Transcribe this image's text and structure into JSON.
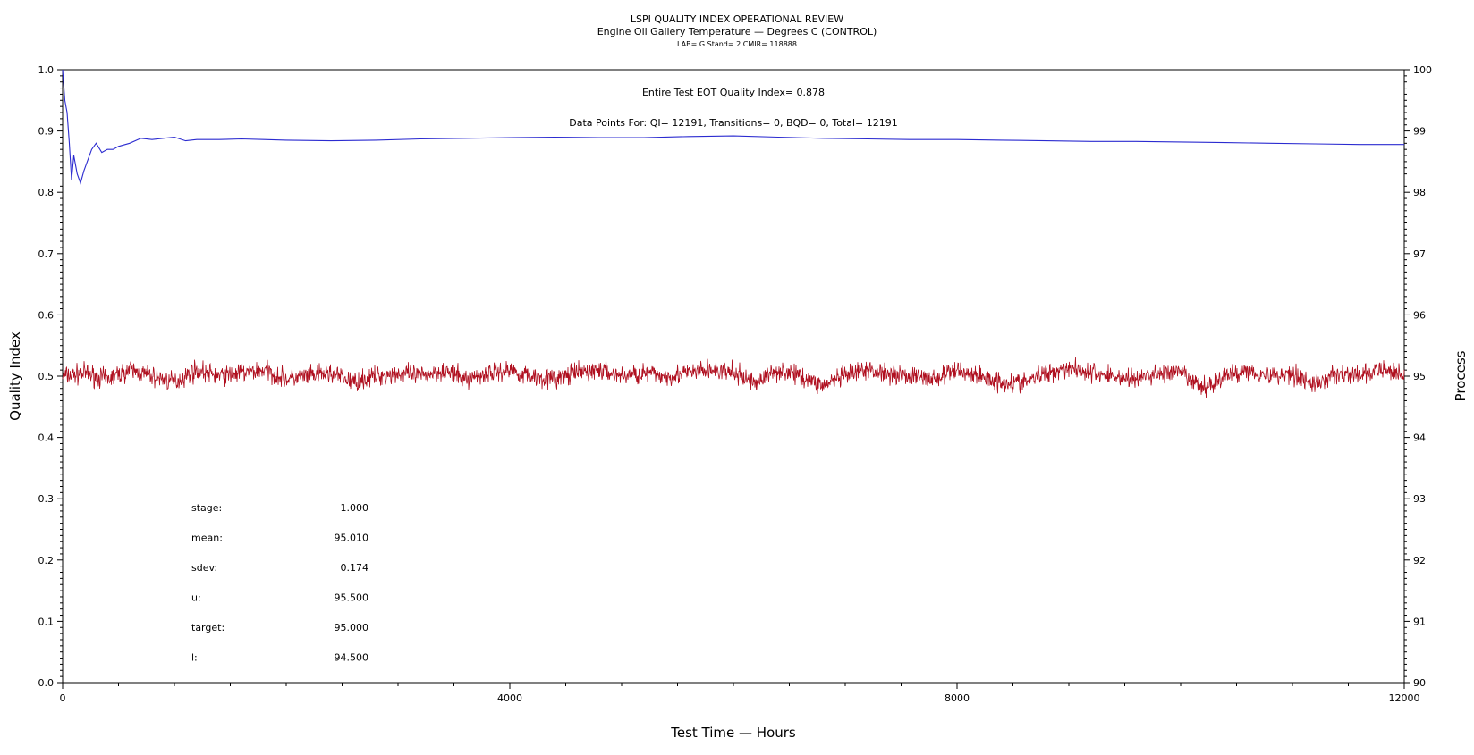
{
  "chart_data": {
    "type": "line",
    "title": "LSPI QUALITY INDEX OPERATIONAL REVIEW",
    "subtitle": "Engine Oil Gallery Temperature — Degrees C (CONTROL)",
    "subtitle2": "LAB= G Stand= 2 CMIR= 118888",
    "xlabel": "Test Time — Hours",
    "ylabel": "Quality Index",
    "y2label": "Process",
    "xlim": [
      0,
      12000
    ],
    "ylim": [
      0,
      1.0
    ],
    "y2lim": [
      90,
      100
    ],
    "x_ticks": [
      0,
      4000,
      8000,
      12000
    ],
    "y_ticks": [
      "0.0",
      "0.1",
      "0.2",
      "0.3",
      "0.4",
      "0.5",
      "0.6",
      "0.7",
      "0.8",
      "0.9",
      "1.0"
    ],
    "y2_ticks": [
      "90",
      "91",
      "92",
      "93",
      "94",
      "95",
      "96",
      "97",
      "98",
      "99",
      "100"
    ],
    "annotations": {
      "quality_index": "Entire Test EOT Quality Index=   0.878",
      "data_points": "Data Points For: QI= 12191, Transitions=     0, BQD=     0, Total= 12191"
    },
    "stats": [
      {
        "label": "stage:",
        "value": "1.000"
      },
      {
        "label": "mean:",
        "value": "95.010"
      },
      {
        "label": "sdev:",
        "value": "0.174"
      },
      {
        "label": "u:",
        "value": "95.500"
      },
      {
        "label": "target:",
        "value": "95.000"
      },
      {
        "label": "l:",
        "value": "94.500"
      }
    ],
    "grid": false,
    "series": [
      {
        "axis": "left",
        "color": "#2b2bd0",
        "x": [
          0,
          20,
          40,
          60,
          80,
          100,
          130,
          160,
          190,
          220,
          260,
          300,
          350,
          400,
          450,
          500,
          600,
          700,
          800,
          900,
          1000,
          1100,
          1200,
          1400,
          1600,
          1800,
          2000,
          2400,
          2800,
          3200,
          3600,
          4000,
          4400,
          4800,
          5200,
          5600,
          6000,
          6400,
          6800,
          7200,
          7600,
          8000,
          8400,
          8800,
          9200,
          9600,
          10000,
          10400,
          10800,
          11200,
          11600,
          12000
        ],
        "values": [
          1.0,
          0.95,
          0.93,
          0.88,
          0.82,
          0.86,
          0.83,
          0.815,
          0.835,
          0.85,
          0.87,
          0.88,
          0.865,
          0.87,
          0.87,
          0.875,
          0.88,
          0.888,
          0.886,
          0.888,
          0.89,
          0.884,
          0.886,
          0.886,
          0.887,
          0.886,
          0.885,
          0.884,
          0.885,
          0.887,
          0.888,
          0.889,
          0.89,
          0.889,
          0.889,
          0.891,
          0.892,
          0.89,
          0.888,
          0.887,
          0.886,
          0.886,
          0.885,
          0.884,
          0.883,
          0.883,
          0.882,
          0.881,
          0.88,
          0.879,
          0.878,
          0.878
        ]
      },
      {
        "axis": "right",
        "color": "#b01020",
        "x": [
          0,
          200,
          400,
          600,
          800,
          1000,
          1200,
          1400,
          1600,
          1800,
          2000,
          2200,
          2400,
          2600,
          2800,
          3000,
          3200,
          3400,
          3600,
          3800,
          4000,
          4200,
          4400,
          4600,
          4800,
          5000,
          5200,
          5400,
          5600,
          5800,
          6000,
          6200,
          6400,
          6600,
          6800,
          7000,
          7200,
          7400,
          7600,
          7800,
          8000,
          8200,
          8400,
          8600,
          8800,
          9000,
          9200,
          9400,
          9600,
          9800,
          10000,
          10200,
          10400,
          10600,
          10800,
          11000,
          11200,
          11400,
          11600,
          11800,
          12000
        ],
        "values": [
          95.0,
          95.05,
          94.95,
          95.1,
          95.0,
          94.9,
          95.1,
          95.0,
          95.05,
          95.1,
          94.95,
          95.0,
          95.05,
          94.9,
          95.0,
          95.05,
          95.0,
          95.1,
          94.95,
          95.05,
          95.1,
          95.0,
          94.95,
          95.05,
          95.1,
          95.0,
          95.05,
          95.0,
          95.05,
          95.1,
          95.05,
          94.9,
          95.1,
          95.0,
          94.85,
          95.0,
          95.1,
          95.05,
          95.0,
          94.95,
          95.1,
          95.0,
          94.9,
          94.9,
          95.05,
          95.15,
          95.05,
          95.0,
          94.95,
          95.05,
          95.05,
          94.8,
          95.0,
          95.1,
          95.0,
          95.05,
          94.85,
          95.05,
          95.0,
          95.1,
          95.05
        ]
      }
    ]
  }
}
